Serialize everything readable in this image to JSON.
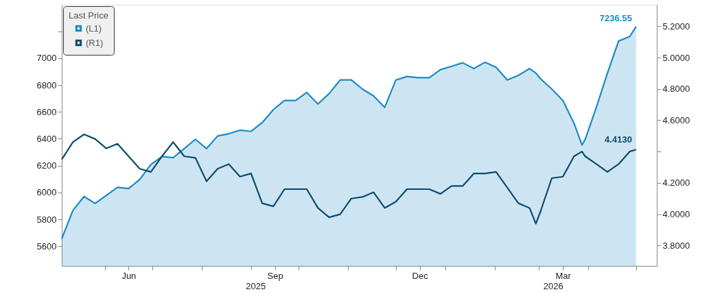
{
  "chart_data": {
    "type": "line",
    "legend_title": "Last Price",
    "x": [
      "2025-05-05",
      "2025-05-12",
      "2025-05-19",
      "2025-05-26",
      "2025-06-02",
      "2025-06-09",
      "2025-06-16",
      "2025-06-23",
      "2025-06-30",
      "2025-07-07",
      "2025-07-14",
      "2025-07-21",
      "2025-07-28",
      "2025-08-04",
      "2025-08-11",
      "2025-08-18",
      "2025-08-25",
      "2025-09-01",
      "2025-09-08",
      "2025-09-15",
      "2025-09-22",
      "2025-09-29",
      "2025-10-06",
      "2025-10-13",
      "2025-10-20",
      "2025-10-27",
      "2025-11-03",
      "2025-11-10",
      "2025-11-17",
      "2025-11-24",
      "2025-12-01",
      "2025-12-08",
      "2025-12-15",
      "2025-12-22",
      "2025-12-29",
      "2026-01-05",
      "2026-01-12",
      "2026-01-19",
      "2026-01-26",
      "2026-02-02",
      "2026-02-09",
      "2026-02-16",
      "2026-02-23",
      "2026-02-27",
      "2026-03-02",
      "2026-03-09",
      "2026-03-16",
      "2026-03-23",
      "2026-03-28",
      "2026-03-30",
      "2026-04-06",
      "2026-04-13",
      "2026-04-20",
      "2026-04-27",
      "2026-05-01"
    ],
    "series": [
      {
        "name": "(L1)",
        "type": "area",
        "color": "#1a8ac6",
        "values": [
          5656,
          5866,
          5970,
          5918,
          5978,
          6038,
          6029,
          6097,
          6208,
          6268,
          6259,
          6327,
          6396,
          6327,
          6421,
          6438,
          6464,
          6455,
          6520,
          6617,
          6685,
          6685,
          6745,
          6659,
          6736,
          6838,
          6838,
          6770,
          6719,
          6634,
          6838,
          6864,
          6855,
          6855,
          6915,
          6940,
          6966,
          6923,
          6970,
          6932,
          6838,
          6872,
          6923,
          6889,
          6847,
          6770,
          6685,
          6515,
          6353,
          6396,
          6634,
          6889,
          7128,
          7162,
          7236.55
        ],
        "value_labels": [
          null,
          null,
          null,
          null,
          null,
          null,
          null,
          null,
          null,
          null,
          null,
          null,
          null,
          null,
          null,
          null,
          null,
          null,
          null,
          null,
          null,
          null,
          null,
          null,
          null,
          null,
          null,
          null,
          null,
          null,
          null,
          null,
          null,
          null,
          null,
          null,
          null,
          null,
          null,
          null,
          null,
          null,
          null,
          null,
          null,
          null,
          null,
          null,
          null,
          null,
          null,
          null,
          null,
          null,
          "7236.55"
        ]
      },
      {
        "name": "(R1)",
        "axis": "y2",
        "color": "#0b4a6e",
        "values": [
          4.35,
          4.46,
          4.51,
          4.48,
          4.42,
          4.45,
          4.37,
          4.29,
          4.27,
          4.37,
          4.46,
          4.37,
          4.36,
          4.21,
          4.29,
          4.32,
          4.24,
          4.26,
          4.07,
          4.05,
          4.16,
          4.16,
          4.16,
          4.04,
          3.98,
          4.0,
          4.1,
          4.11,
          4.14,
          4.04,
          4.08,
          4.16,
          4.16,
          4.16,
          4.13,
          4.18,
          4.18,
          4.26,
          4.26,
          4.27,
          4.17,
          4.07,
          4.04,
          3.94,
          4.02,
          4.23,
          4.24,
          4.37,
          4.4,
          4.37,
          4.32,
          4.27,
          4.32,
          4.4,
          4.413
        ],
        "value_labels": [
          null,
          null,
          null,
          null,
          null,
          null,
          null,
          null,
          null,
          null,
          null,
          null,
          null,
          null,
          null,
          null,
          null,
          null,
          null,
          null,
          null,
          null,
          null,
          null,
          null,
          null,
          null,
          null,
          null,
          null,
          null,
          null,
          null,
          null,
          null,
          null,
          null,
          null,
          null,
          null,
          null,
          null,
          null,
          null,
          null,
          null,
          null,
          null,
          null,
          null,
          null,
          null,
          null,
          null,
          "4.4130"
        ]
      }
    ],
    "xlim": [
      "2025-05-05",
      "2026-05-14"
    ],
    "xticks": [
      {
        "value": "2025-06-01",
        "label": null
      },
      {
        "value": "2025-06-16",
        "label": "Jun"
      },
      {
        "value": "2025-07-01",
        "label": null
      },
      {
        "value": "2025-08-01",
        "label": null
      },
      {
        "value": "2025-09-01",
        "label": null
      },
      {
        "value": "2025-09-16",
        "label": "Sep"
      },
      {
        "value": "2025-10-01",
        "label": null
      },
      {
        "value": "2025-11-01",
        "label": null
      },
      {
        "value": "2025-12-01",
        "label": null
      },
      {
        "value": "2025-12-16",
        "label": "Dec"
      },
      {
        "value": "2026-01-01",
        "label": null
      },
      {
        "value": "2026-02-01",
        "label": null
      },
      {
        "value": "2026-03-01",
        "label": null
      },
      {
        "value": "2026-03-16",
        "label": "Mar"
      },
      {
        "value": "2026-04-01",
        "label": null
      },
      {
        "value": "2026-05-01",
        "label": null
      }
    ],
    "x2lim": [
      "2025-05-05",
      "2026-05-14"
    ],
    "x2ticks": [
      {
        "value": "2025-09-04",
        "label": "2025"
      },
      {
        "value": "2026-03-10",
        "label": "2026"
      }
    ],
    "ylim": [
      5453,
      7398
    ],
    "yticks": [
      5600,
      5800,
      6000,
      6200,
      6400,
      6600,
      6800,
      7000,
      {
        "value": 7200,
        "label": null
      }
    ],
    "y2lim": [
      3.67,
      5.337
    ],
    "y2ticks": [
      {
        "value": 3.8,
        "label": "3.8000"
      },
      {
        "value": 4.0,
        "label": "4.0000"
      },
      {
        "value": 4.2,
        "label": "4.2000"
      },
      {
        "value": 4.4,
        "label": null
      },
      {
        "value": 4.6,
        "label": "4.6000"
      },
      {
        "value": 4.8,
        "label": "4.8000"
      },
      {
        "value": 5.0,
        "label": "5.0000"
      },
      {
        "value": 5.2,
        "label": "5.2000"
      }
    ],
    "legend": "top left"
  }
}
